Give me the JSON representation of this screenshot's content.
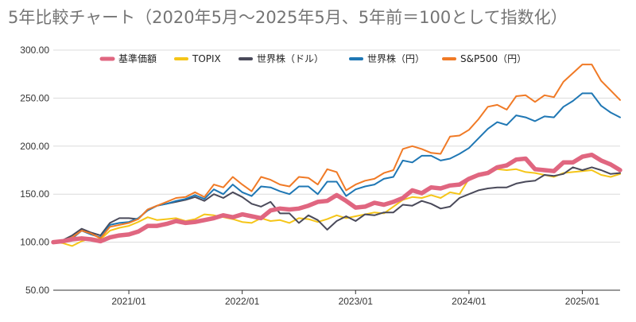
{
  "chart_data": {
    "type": "line",
    "title": "5年比較チャート（2020年5月～2025年5月、5年前＝100として指数化）",
    "xlabel": "",
    "ylabel": "",
    "ylim": [
      50,
      300
    ],
    "yticks": [
      "50.00",
      "100.00",
      "150.00",
      "200.00",
      "250.00",
      "300.00"
    ],
    "xlim": [
      "2020-05",
      "2025-05"
    ],
    "xticks": [
      "2021/01",
      "2022/01",
      "2023/01",
      "2024/01",
      "2025/01"
    ],
    "grid": true,
    "legend": "top",
    "x": [
      "2020-05",
      "2020-06",
      "2020-07",
      "2020-08",
      "2020-09",
      "2020-10",
      "2020-11",
      "2020-12",
      "2021-01",
      "2021-02",
      "2021-03",
      "2021-04",
      "2021-05",
      "2021-06",
      "2021-07",
      "2021-08",
      "2021-09",
      "2021-10",
      "2021-11",
      "2021-12",
      "2022-01",
      "2022-02",
      "2022-03",
      "2022-04",
      "2022-05",
      "2022-06",
      "2022-07",
      "2022-08",
      "2022-09",
      "2022-10",
      "2022-11",
      "2022-12",
      "2023-01",
      "2023-02",
      "2023-03",
      "2023-04",
      "2023-05",
      "2023-06",
      "2023-07",
      "2023-08",
      "2023-09",
      "2023-10",
      "2023-11",
      "2023-12",
      "2024-01",
      "2024-02",
      "2024-03",
      "2024-04",
      "2024-05",
      "2024-06",
      "2024-07",
      "2024-08",
      "2024-09",
      "2024-10",
      "2024-11",
      "2024-12",
      "2025-01",
      "2025-02",
      "2025-03",
      "2025-04",
      "2025-05"
    ],
    "series": [
      {
        "name": "基準価額",
        "color": "#e06680",
        "values": [
          100,
          101,
          103,
          104,
          103,
          101,
          105,
          107,
          108,
          111,
          117,
          117,
          119,
          122,
          120,
          121,
          123,
          125,
          128,
          126,
          129,
          127,
          125,
          133,
          135,
          134,
          135,
          138,
          142,
          143,
          149,
          143,
          136,
          137,
          141,
          139,
          142,
          146,
          154,
          151,
          157,
          156,
          159,
          160,
          166,
          170,
          172,
          178,
          180,
          186,
          187,
          176,
          175,
          174,
          183,
          183,
          189,
          191,
          185,
          181,
          175
        ]
      },
      {
        "name": "TOPIX",
        "color": "#f5c518",
        "values": [
          100,
          99,
          96,
          101,
          104,
          103,
          112,
          115,
          117,
          121,
          126,
          123,
          124,
          125,
          122,
          124,
          129,
          128,
          126,
          124,
          121,
          120,
          125,
          122,
          123,
          120,
          125,
          124,
          121,
          124,
          128,
          125,
          127,
          129,
          131,
          130,
          137,
          144,
          147,
          146,
          149,
          146,
          152,
          150,
          166,
          171,
          173,
          176,
          175,
          176,
          173,
          172,
          170,
          168,
          172,
          173,
          174,
          175,
          170,
          168,
          171
        ]
      },
      {
        "name": "世界株（ドル）",
        "color": "#4a4a5a",
        "values": [
          100,
          102,
          107,
          114,
          110,
          107,
          120,
          125,
          125,
          124,
          134,
          138,
          140,
          142,
          144,
          147,
          143,
          150,
          146,
          152,
          147,
          140,
          137,
          142,
          130,
          130,
          120,
          128,
          123,
          113,
          122,
          127,
          122,
          129,
          128,
          131,
          131,
          139,
          138,
          143,
          140,
          135,
          137,
          146,
          150,
          154,
          156,
          157,
          157,
          161,
          163,
          164,
          170,
          169,
          171,
          178,
          175,
          178,
          175,
          171,
          172
        ]
      },
      {
        "name": "世界株（円）",
        "color": "#1f77b4",
        "values": [
          100,
          101,
          104,
          112,
          108,
          105,
          118,
          120,
          121,
          125,
          133,
          138,
          140,
          143,
          145,
          149,
          145,
          155,
          150,
          160,
          152,
          148,
          158,
          157,
          153,
          150,
          158,
          158,
          150,
          163,
          163,
          148,
          155,
          158,
          160,
          166,
          168,
          185,
          183,
          190,
          190,
          185,
          187,
          192,
          198,
          208,
          218,
          225,
          222,
          232,
          230,
          226,
          231,
          230,
          241,
          247,
          255,
          255,
          242,
          235,
          230
        ]
      },
      {
        "name": "S&P500（円）",
        "color": "#f07a26",
        "values": [
          100,
          102,
          105,
          112,
          109,
          104,
          116,
          118,
          120,
          124,
          134,
          138,
          142,
          146,
          147,
          152,
          147,
          160,
          157,
          168,
          160,
          153,
          168,
          165,
          160,
          158,
          168,
          167,
          160,
          176,
          173,
          154,
          160,
          164,
          166,
          172,
          175,
          197,
          200,
          197,
          193,
          192,
          210,
          211,
          217,
          228,
          241,
          243,
          238,
          252,
          253,
          246,
          253,
          251,
          267,
          276,
          285,
          285,
          268,
          258,
          248
        ]
      }
    ]
  }
}
